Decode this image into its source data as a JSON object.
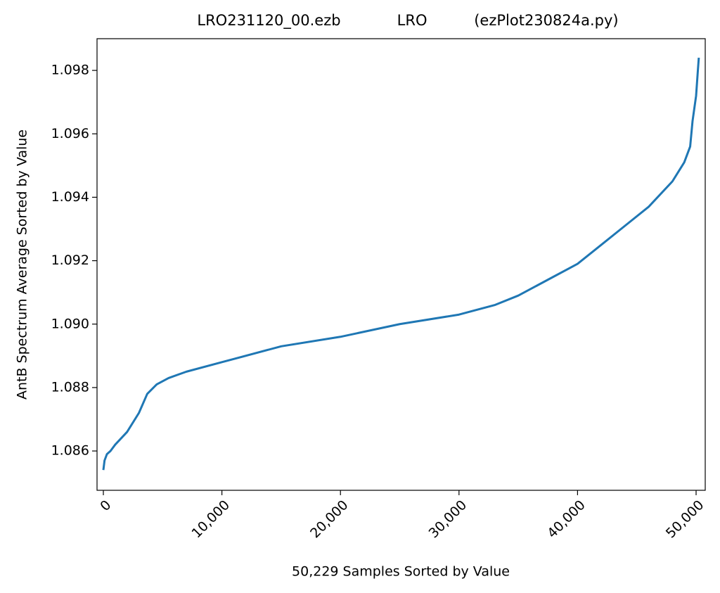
{
  "chart_data": {
    "type": "line",
    "title": "LRO231120_00.ezb            LRO          (ezPlot230824a.py)",
    "xlabel": "50,229 Samples Sorted by Value",
    "ylabel": "AntB Spectrum Average Sorted by Value",
    "x": [
      0,
      100,
      300,
      600,
      1000,
      2000,
      3000,
      3700,
      4500,
      5500,
      7000,
      10000,
      15000,
      20000,
      25000,
      30000,
      33000,
      35000,
      38000,
      40000,
      42000,
      44000,
      46000,
      48000,
      49000,
      49500,
      49700,
      50000,
      50150,
      50228
    ],
    "series": [
      {
        "name": "AntB",
        "color": "#1f77b4",
        "values": [
          1.0854,
          1.0857,
          1.0859,
          1.086,
          1.0862,
          1.0866,
          1.0872,
          1.0878,
          1.0881,
          1.0883,
          1.0885,
          1.0888,
          1.0893,
          1.0896,
          1.09,
          1.0903,
          1.0906,
          1.0909,
          1.0915,
          1.0919,
          1.0925,
          1.0931,
          1.0937,
          1.0945,
          1.0951,
          1.0956,
          1.0964,
          1.0972,
          1.098,
          1.0984
        ]
      }
    ],
    "xlim": [
      -534,
      50771
    ],
    "ylim": [
      1.08476,
      1.099
    ],
    "xticks": [
      0,
      {
        "value": 10000,
        "label": "10,000"
      },
      {
        "value": 20000,
        "label": "20,000"
      },
      {
        "value": 30000,
        "label": "30,000"
      },
      {
        "value": 40000,
        "label": "40,000"
      },
      {
        "value": 50000,
        "label": "50,000"
      }
    ],
    "yticks": [
      1.086,
      1.088,
      {
        "value": 1.09,
        "label": "1.090"
      },
      1.092,
      1.094,
      1.096,
      1.098
    ],
    "grid": false
  }
}
